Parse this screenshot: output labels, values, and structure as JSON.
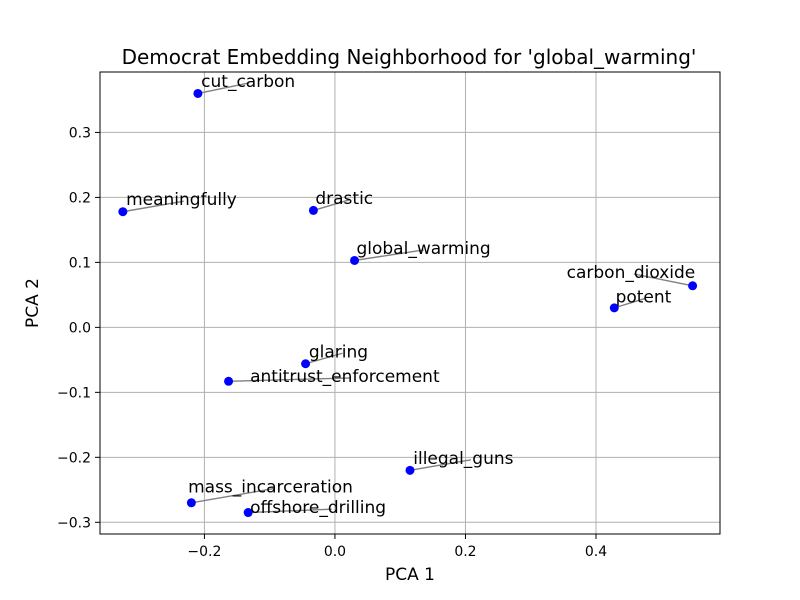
{
  "chart_data": {
    "type": "scatter",
    "title": "Democrat Embedding Neighborhood for 'global_warming'",
    "xlabel": "PCA 1",
    "ylabel": "PCA 2",
    "xlim": [
      -0.36,
      0.59
    ],
    "ylim": [
      -0.318,
      0.393
    ],
    "xticks": [
      -0.2,
      0.0,
      0.2,
      0.4
    ],
    "xtick_labels": [
      "−0.2",
      "0.0",
      "0.2",
      "0.4"
    ],
    "yticks": [
      -0.3,
      -0.2,
      -0.1,
      0.0,
      0.1,
      0.2,
      0.3
    ],
    "ytick_labels": [
      "−0.3",
      "−0.2",
      "−0.1",
      "0.0",
      "0.1",
      "0.2",
      "0.3"
    ],
    "grid": true,
    "marker_color": "#0000ff",
    "leader_color": "#808080",
    "points": [
      {
        "label": "cut_carbon",
        "x": -0.21,
        "y": 0.36,
        "label_x": -0.205,
        "label_y": 0.37
      },
      {
        "label": "meaningfully",
        "x": -0.325,
        "y": 0.178,
        "label_x": -0.32,
        "label_y": 0.188
      },
      {
        "label": "drastic",
        "x": -0.033,
        "y": 0.18,
        "label_x": -0.03,
        "label_y": 0.19
      },
      {
        "label": "global_warming",
        "x": 0.03,
        "y": 0.103,
        "label_x": 0.033,
        "label_y": 0.113
      },
      {
        "label": "carbon_dioxide",
        "x": 0.548,
        "y": 0.064,
        "label_x": 0.355,
        "label_y": 0.076
      },
      {
        "label": "potent",
        "x": 0.428,
        "y": 0.03,
        "label_x": 0.43,
        "label_y": 0.038
      },
      {
        "label": "glaring",
        "x": -0.045,
        "y": -0.056,
        "label_x": -0.04,
        "label_y": -0.046
      },
      {
        "label": "antitrust_enforcement",
        "x": -0.163,
        "y": -0.083,
        "label_x": -0.13,
        "label_y": -0.084
      },
      {
        "label": "illegal_guns",
        "x": 0.115,
        "y": -0.22,
        "label_x": 0.12,
        "label_y": -0.21
      },
      {
        "label": "mass_incarceration",
        "x": -0.22,
        "y": -0.27,
        "label_x": -0.225,
        "label_y": -0.254
      },
      {
        "label": "offshore_drilling",
        "x": -0.133,
        "y": -0.285,
        "label_x": -0.13,
        "label_y": -0.286
      }
    ]
  }
}
